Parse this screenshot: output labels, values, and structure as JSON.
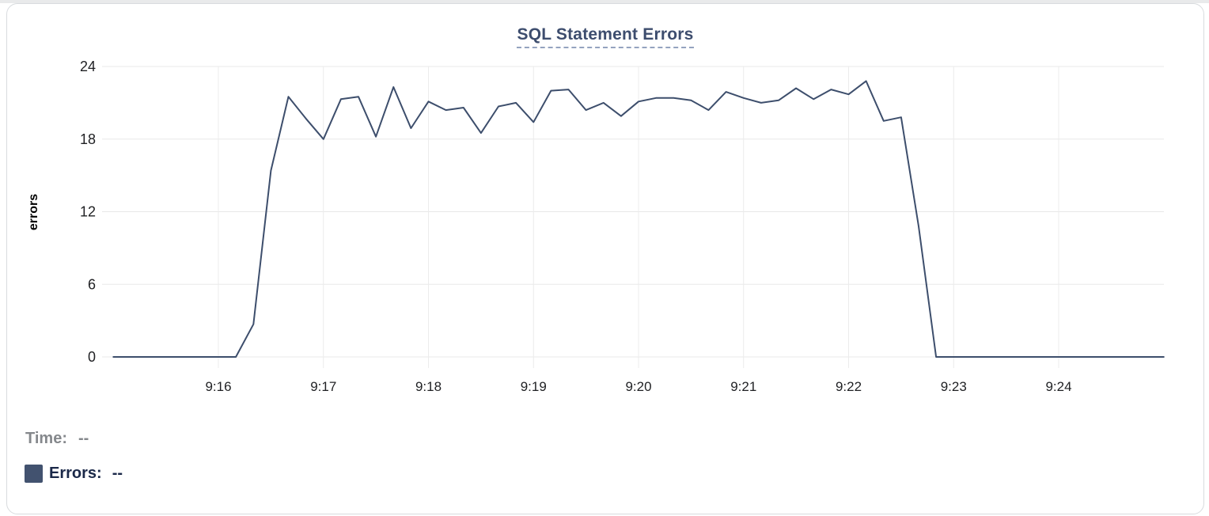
{
  "page": {
    "top_strip_color": "#e9eaeb",
    "card_border_color": "#d8dbde",
    "background_color": "#ffffff"
  },
  "chart": {
    "title": "SQL Statement Errors",
    "title_color": "#3d4d6e",
    "title_underline_color": "#94a3bf",
    "gridline_color": "#e8e8e8",
    "tick_label_color": "#1f2023",
    "axis_title_color": "#000000"
  },
  "chart_data": {
    "type": "line",
    "title": "SQL Statement Errors",
    "xlabel": "",
    "ylabel": "errors",
    "x_tick_labels": [
      "9:16",
      "9:17",
      "9:18",
      "9:19",
      "9:20",
      "9:21",
      "9:22",
      "9:23",
      "9:24"
    ],
    "y_ticks": [
      0,
      6,
      12,
      18,
      24
    ],
    "ylim": [
      0,
      24
    ],
    "x_range": [
      "9:15:00",
      "9:25:00"
    ],
    "grid": true,
    "legend_position": "bottom-left",
    "series": [
      {
        "name": "Errors",
        "color": "#3d4e6c",
        "x": [
          "9:15:00",
          "9:15:10",
          "9:15:20",
          "9:15:30",
          "9:15:40",
          "9:15:50",
          "9:16:00",
          "9:16:10",
          "9:16:20",
          "9:16:30",
          "9:16:40",
          "9:16:50",
          "9:17:00",
          "9:17:10",
          "9:17:20",
          "9:17:30",
          "9:17:40",
          "9:17:50",
          "9:18:00",
          "9:18:10",
          "9:18:20",
          "9:18:30",
          "9:18:40",
          "9:18:50",
          "9:19:00",
          "9:19:10",
          "9:19:20",
          "9:19:30",
          "9:19:40",
          "9:19:50",
          "9:20:00",
          "9:20:10",
          "9:20:20",
          "9:20:30",
          "9:20:40",
          "9:20:50",
          "9:21:00",
          "9:21:10",
          "9:21:20",
          "9:21:30",
          "9:21:40",
          "9:21:50",
          "9:22:00",
          "9:22:10",
          "9:22:20",
          "9:22:30",
          "9:22:40",
          "9:22:50",
          "9:23:00",
          "9:23:10",
          "9:23:20",
          "9:23:30",
          "9:23:40",
          "9:23:50",
          "9:24:00",
          "9:24:10",
          "9:24:20",
          "9:24:30",
          "9:24:40",
          "9:24:50",
          "9:25:00"
        ],
        "values": [
          0,
          0,
          0,
          0,
          0,
          0,
          0,
          0,
          2.7,
          15.4,
          21.5,
          19.7,
          18.0,
          21.3,
          21.5,
          18.2,
          22.3,
          18.9,
          21.1,
          20.4,
          20.6,
          18.5,
          20.7,
          21.0,
          19.4,
          22.0,
          22.1,
          20.4,
          21.0,
          19.9,
          21.1,
          21.4,
          21.4,
          21.2,
          20.4,
          21.9,
          21.4,
          21.0,
          21.2,
          22.2,
          21.3,
          22.1,
          21.7,
          22.8,
          19.5,
          19.8,
          10.8,
          0,
          0,
          0,
          0,
          0,
          0,
          0,
          0,
          0,
          0,
          0,
          0,
          0,
          0
        ]
      }
    ]
  },
  "readout": {
    "time_label": "Time:",
    "time_value": "--",
    "errors_label": "Errors:",
    "errors_value": "--",
    "swatch_color": "#42526f"
  }
}
